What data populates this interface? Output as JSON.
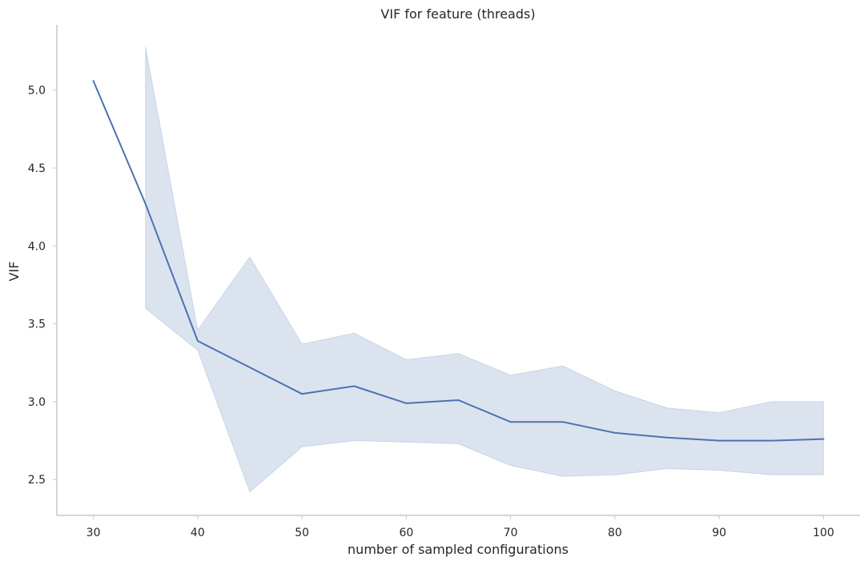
{
  "chart_data": {
    "type": "line",
    "title": "VIF for feature (threads)",
    "xlabel": "number of sampled configurations",
    "ylabel": "VIF",
    "xlim": [
      26.5,
      103.5
    ],
    "ylim": [
      2.27,
      5.42
    ],
    "xticks": [
      30,
      40,
      50,
      60,
      70,
      80,
      90,
      100
    ],
    "yticks": [
      2.5,
      3.0,
      3.5,
      4.0,
      4.5,
      5.0
    ],
    "grid": false,
    "colors": {
      "line": "#4c72b0",
      "band": "#4c72b0"
    },
    "series": [
      {
        "x": [
          30,
          35,
          40,
          45,
          50,
          55,
          60,
          65,
          70,
          75,
          80,
          85,
          90,
          95,
          100
        ],
        "y": [
          5.06,
          4.27,
          3.39,
          3.22,
          3.05,
          3.1,
          2.99,
          3.01,
          2.87,
          2.87,
          2.8,
          2.77,
          2.75,
          2.75,
          2.76
        ],
        "band": {
          "x": [
            35,
            40,
            45,
            50,
            55,
            60,
            65,
            70,
            75,
            80,
            85,
            90,
            95,
            100
          ],
          "lower": [
            3.6,
            3.33,
            2.42,
            2.71,
            2.75,
            2.74,
            2.73,
            2.59,
            2.52,
            2.53,
            2.57,
            2.56,
            2.53,
            2.53
          ],
          "upper": [
            5.28,
            3.46,
            3.93,
            3.37,
            3.44,
            3.27,
            3.31,
            3.17,
            3.23,
            3.07,
            2.96,
            2.93,
            3.0,
            3.0
          ]
        }
      }
    ]
  }
}
